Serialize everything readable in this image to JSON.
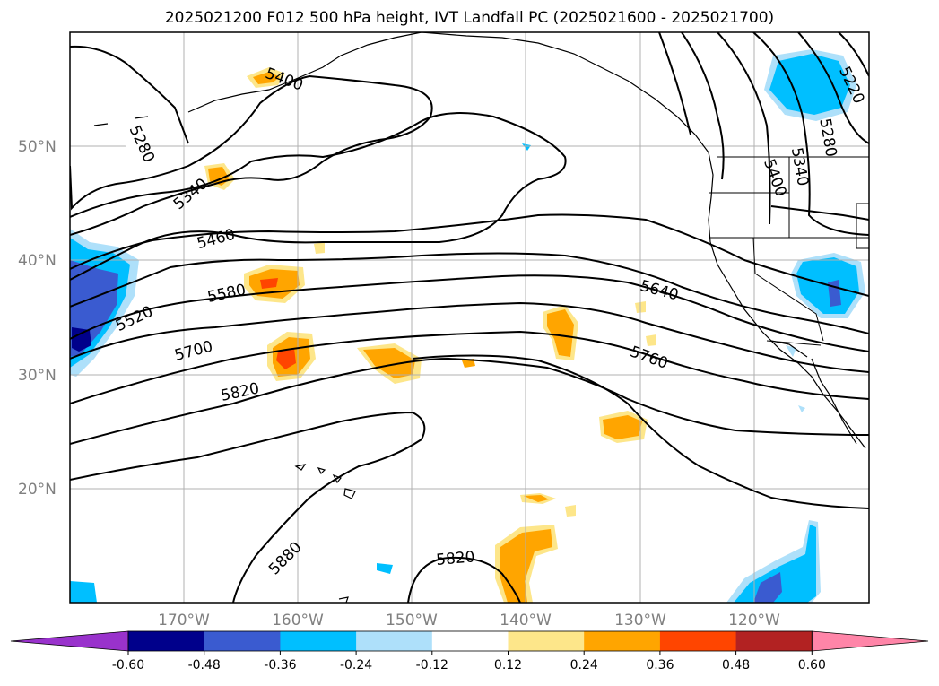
{
  "title": "2025021200 F012 500 hPa height, IVT Landfall PC (2025021600 - 2025021700)",
  "lat_labels": [
    "50°N",
    "40°N",
    "30°N",
    "20°N"
  ],
  "lon_labels": [
    "170°W",
    "160°W",
    "150°W",
    "140°W",
    "130°W",
    "120°W"
  ],
  "contour_labels": [
    "5280",
    "5340",
    "5400",
    "5460",
    "5520",
    "5580",
    "5640",
    "5700",
    "5760",
    "5820",
    "5880",
    "5820",
    "5220",
    "5280",
    "5340",
    "5400"
  ],
  "colorbar": {
    "ticks": [
      "-0.60",
      "-0.48",
      "-0.36",
      "-0.24",
      "-0.12",
      "0.12",
      "0.24",
      "0.36",
      "0.48",
      "0.60"
    ],
    "colors": [
      "#9932cc",
      "#00008b",
      "#3a5bd0",
      "#00bfff",
      "#aee0fa",
      "#ffffff",
      "#fde68a",
      "#ffa500",
      "#ff4500",
      "#b22222",
      "#ff85a8"
    ]
  }
}
